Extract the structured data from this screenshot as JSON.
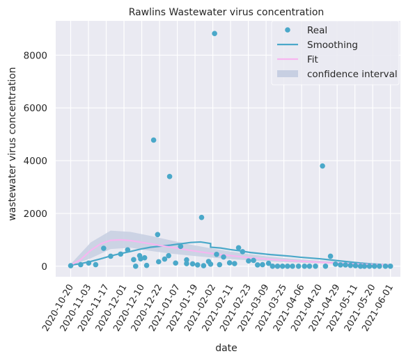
{
  "chart_data": {
    "type": "scatter",
    "title": "Rawlins Wastewater virus concentration",
    "xlabel": "date",
    "ylabel": "wastewater virus concentration",
    "x_ticks": [
      "2020-10-20",
      "2020-11-03",
      "2020-11-17",
      "2020-12-01",
      "2020-12-10",
      "2020-12-22",
      "2021-01-07",
      "2021-01-19",
      "2021-02-02",
      "2021-02-11",
      "2021-02-23",
      "2021-03-09",
      "2021-03-25",
      "2021-04-06",
      "2021-04-20",
      "2021-04-29",
      "2021-05-11",
      "2021-05-20",
      "2021-06-01"
    ],
    "y_ticks": [
      0,
      2000,
      4000,
      6000,
      8000
    ],
    "ylim": [
      -400,
      9300
    ],
    "grid": true,
    "legend_position": "top-right",
    "colors": {
      "background": "#eaeaf2",
      "grid": "#ffffff",
      "real": "#4aa8c9",
      "smoothing": "#4aa8c9",
      "fit": "#f7b6f0",
      "confidence": "#c7cfe2"
    },
    "legend": {
      "real": "Real",
      "smoothing": "Smoothing",
      "fit": "Fit",
      "confidence": "confidence interval"
    },
    "series": [
      {
        "name": "Real",
        "kind": "scatter",
        "points": [
          [
            0.0,
            20
          ],
          [
            1.0,
            60
          ],
          [
            1.8,
            120
          ],
          [
            2.5,
            60
          ],
          [
            3.3,
            680
          ],
          [
            4.0,
            380
          ],
          [
            5.0,
            460
          ],
          [
            5.7,
            620
          ],
          [
            6.3,
            250
          ],
          [
            6.5,
            0
          ],
          [
            6.9,
            400
          ],
          [
            7.0,
            280
          ],
          [
            7.4,
            320
          ],
          [
            7.6,
            30
          ],
          [
            8.3,
            4780
          ],
          [
            8.7,
            1200
          ],
          [
            8.8,
            170
          ],
          [
            9.4,
            270
          ],
          [
            9.9,
            3400
          ],
          [
            9.8,
            400
          ],
          [
            10.5,
            120
          ],
          [
            11.0,
            750
          ],
          [
            11.6,
            240
          ],
          [
            11.6,
            100
          ],
          [
            12.2,
            90
          ],
          [
            12.7,
            50
          ],
          [
            13.1,
            1850
          ],
          [
            13.3,
            20
          ],
          [
            13.8,
            180
          ],
          [
            14.0,
            80
          ],
          [
            14.4,
            8820
          ],
          [
            14.6,
            450
          ],
          [
            14.9,
            60
          ],
          [
            15.3,
            350
          ],
          [
            15.9,
            130
          ],
          [
            16.4,
            100
          ],
          [
            16.8,
            700
          ],
          [
            17.2,
            550
          ],
          [
            17.8,
            200
          ],
          [
            18.3,
            220
          ],
          [
            18.7,
            50
          ],
          [
            19.2,
            60
          ],
          [
            19.8,
            110
          ],
          [
            20.2,
            0
          ],
          [
            20.7,
            0
          ],
          [
            21.2,
            0
          ],
          [
            21.7,
            0
          ],
          [
            22.2,
            0
          ],
          [
            22.8,
            0
          ],
          [
            23.4,
            0
          ],
          [
            23.9,
            0
          ],
          [
            24.5,
            0
          ],
          [
            25.2,
            3800
          ],
          [
            25.5,
            0
          ],
          [
            26.0,
            380
          ],
          [
            26.5,
            80
          ],
          [
            27.0,
            50
          ],
          [
            27.5,
            50
          ],
          [
            28.0,
            30
          ],
          [
            28.5,
            20
          ],
          [
            29.0,
            0
          ],
          [
            29.4,
            0
          ],
          [
            29.9,
            0
          ],
          [
            30.4,
            0
          ],
          [
            30.9,
            0
          ],
          [
            31.5,
            0
          ],
          [
            32.0,
            0
          ]
        ]
      },
      {
        "name": "Smoothing",
        "kind": "line",
        "points": [
          [
            0.0,
            40
          ],
          [
            1.0,
            100
          ],
          [
            2.0,
            180
          ],
          [
            3.0,
            280
          ],
          [
            4.0,
            390
          ],
          [
            5.0,
            480
          ],
          [
            6.0,
            560
          ],
          [
            7.0,
            650
          ],
          [
            8.0,
            720
          ],
          [
            9.0,
            760
          ],
          [
            10.0,
            800
          ],
          [
            11.0,
            850
          ],
          [
            12.0,
            900
          ],
          [
            13.0,
            920
          ],
          [
            14.0,
            860
          ],
          [
            14.0,
            720
          ],
          [
            15.0,
            690
          ],
          [
            16.0,
            630
          ],
          [
            17.0,
            580
          ],
          [
            18.0,
            520
          ],
          [
            19.0,
            480
          ],
          [
            20.0,
            440
          ],
          [
            21.0,
            410
          ],
          [
            22.0,
            380
          ],
          [
            23.0,
            340
          ],
          [
            24.0,
            310
          ],
          [
            25.0,
            280
          ],
          [
            26.0,
            240
          ],
          [
            27.0,
            200
          ],
          [
            28.0,
            160
          ],
          [
            29.0,
            120
          ],
          [
            30.0,
            90
          ],
          [
            31.0,
            70
          ],
          [
            32.0,
            50
          ]
        ]
      },
      {
        "name": "Fit",
        "kind": "line",
        "points": [
          [
            0.0,
            40
          ],
          [
            1.0,
            250
          ],
          [
            2.0,
            600
          ],
          [
            3.0,
            850
          ],
          [
            4.0,
            980
          ],
          [
            5.0,
            1000
          ],
          [
            6.0,
            970
          ],
          [
            7.0,
            910
          ],
          [
            8.0,
            850
          ],
          [
            9.0,
            780
          ],
          [
            10.0,
            720
          ],
          [
            11.0,
            660
          ],
          [
            12.0,
            600
          ],
          [
            13.0,
            540
          ],
          [
            14.0,
            490
          ],
          [
            15.0,
            440
          ],
          [
            16.0,
            400
          ],
          [
            17.0,
            360
          ],
          [
            18.0,
            320
          ],
          [
            19.0,
            290
          ],
          [
            20.0,
            260
          ],
          [
            21.0,
            230
          ],
          [
            22.0,
            210
          ],
          [
            23.0,
            190
          ],
          [
            24.0,
            170
          ],
          [
            25.0,
            150
          ],
          [
            26.0,
            130
          ],
          [
            27.0,
            110
          ],
          [
            28.0,
            90
          ],
          [
            29.0,
            80
          ],
          [
            30.0,
            70
          ],
          [
            31.0,
            60
          ],
          [
            32.0,
            50
          ]
        ]
      },
      {
        "name": "confidence interval",
        "kind": "band",
        "lower": [
          [
            0.0,
            20
          ],
          [
            2.0,
            300
          ],
          [
            4.0,
            650
          ],
          [
            6.0,
            700
          ],
          [
            8.0,
            580
          ],
          [
            10.0,
            480
          ],
          [
            12.0,
            400
          ],
          [
            14.0,
            330
          ],
          [
            16.0,
            270
          ],
          [
            18.0,
            220
          ],
          [
            20.0,
            180
          ],
          [
            22.0,
            150
          ],
          [
            24.0,
            120
          ],
          [
            26.0,
            100
          ],
          [
            28.0,
            70
          ],
          [
            30.0,
            50
          ],
          [
            32.0,
            40
          ]
        ],
        "upper": [
          [
            0.0,
            80
          ],
          [
            2.0,
            900
          ],
          [
            4.0,
            1350
          ],
          [
            6.0,
            1300
          ],
          [
            8.0,
            1150
          ],
          [
            10.0,
            980
          ],
          [
            12.0,
            820
          ],
          [
            14.0,
            680
          ],
          [
            16.0,
            560
          ],
          [
            18.0,
            450
          ],
          [
            20.0,
            360
          ],
          [
            22.0,
            290
          ],
          [
            24.0,
            230
          ],
          [
            26.0,
            180
          ],
          [
            28.0,
            130
          ],
          [
            30.0,
            100
          ],
          [
            32.0,
            70
          ]
        ]
      }
    ],
    "x_range": [
      -1.5,
      33.0
    ]
  }
}
